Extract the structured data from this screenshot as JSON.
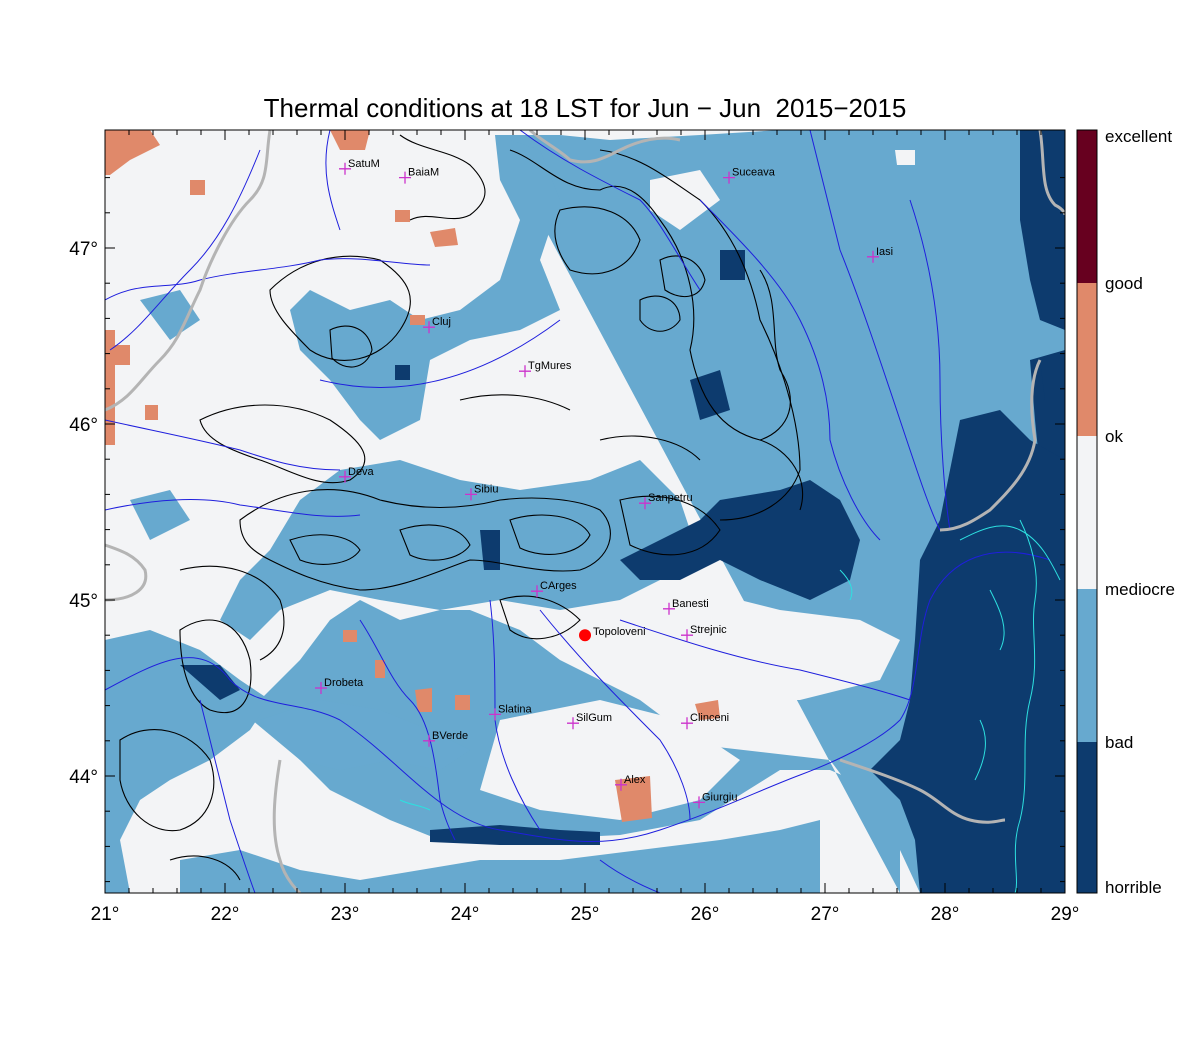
{
  "title": "Thermal conditions at 18 LST for Jun − Jun  2015−2015",
  "x_ticks": [
    "21°",
    "22°",
    "23°",
    "24°",
    "25°",
    "26°",
    "27°",
    "28°",
    "29°"
  ],
  "y_ticks": [
    "44°",
    "45°",
    "46°",
    "47°"
  ],
  "legend_labels": [
    "excellent",
    "good",
    "ok",
    "mediocre",
    "bad",
    "horrible"
  ],
  "legend_colors": {
    "excellent": "#67001f",
    "good": "#67001f",
    "ok": "#e0896a",
    "mediocre": "#f3f4f6",
    "bad": "#67a9cf",
    "horrible": "#0d3b6e"
  },
  "map_colors": {
    "ok": "#e0896a",
    "mediocre": "#f3f4f6",
    "bad": "#67a9cf",
    "horrible": "#0d3b6e",
    "rivers": "#1f1fdd",
    "border": "#b4b4b4",
    "coast": "#2de0e0",
    "marker": "#ff0000",
    "station": "#cc33cc"
  },
  "highlight_station": {
    "name": "Topoloveni",
    "lon": 25.0,
    "lat": 44.8
  },
  "stations": [
    {
      "name": "SatuM",
      "lon": 23.0,
      "lat": 47.45
    },
    {
      "name": "BaiaM",
      "lon": 23.5,
      "lat": 47.4
    },
    {
      "name": "Suceava",
      "lon": 26.2,
      "lat": 47.4
    },
    {
      "name": "Iasi",
      "lon": 27.4,
      "lat": 46.95
    },
    {
      "name": "Cluj",
      "lon": 23.7,
      "lat": 46.55
    },
    {
      "name": "TgMures",
      "lon": 24.5,
      "lat": 46.3
    },
    {
      "name": "Deva",
      "lon": 23.0,
      "lat": 45.7
    },
    {
      "name": "Sibiu",
      "lon": 24.05,
      "lat": 45.6
    },
    {
      "name": "Sanpetru",
      "lon": 25.5,
      "lat": 45.55
    },
    {
      "name": "CArges",
      "lon": 24.6,
      "lat": 45.05
    },
    {
      "name": "Banesti",
      "lon": 25.7,
      "lat": 44.95
    },
    {
      "name": "Strejnic",
      "lon": 25.85,
      "lat": 44.8
    },
    {
      "name": "Drobeta",
      "lon": 22.8,
      "lat": 44.5
    },
    {
      "name": "Slatina",
      "lon": 24.25,
      "lat": 44.35
    },
    {
      "name": "SilGum",
      "lon": 24.9,
      "lat": 44.3
    },
    {
      "name": "Clinceni",
      "lon": 25.85,
      "lat": 44.3
    },
    {
      "name": "BVerde",
      "lon": 23.7,
      "lat": 44.2
    },
    {
      "name": "Alex",
      "lon": 25.3,
      "lat": 43.95
    },
    {
      "name": "Giurgiu",
      "lon": 25.95,
      "lat": 43.85
    }
  ]
}
